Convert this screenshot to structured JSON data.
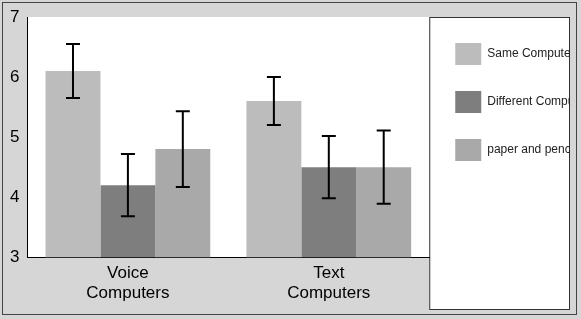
{
  "chart_data": {
    "type": "bar",
    "categories": [
      "Voice Computers",
      "Text Computers"
    ],
    "series": [
      {
        "name": "Same Computer",
        "color": "#bcbcbc",
        "values": [
          6.1,
          5.6
        ],
        "errors": [
          0.45,
          0.4
        ]
      },
      {
        "name": "Different Computer",
        "color": "#7e7e7e",
        "values": [
          4.2,
          4.5
        ],
        "errors": [
          0.52,
          0.52
        ]
      },
      {
        "name": "paper and pencil",
        "color": "#a9a9a9",
        "values": [
          4.8,
          4.5
        ],
        "errors": [
          0.63,
          0.61
        ]
      }
    ],
    "ylim": [
      3,
      7
    ],
    "yticks": [
      3,
      4,
      5,
      6,
      7
    ],
    "grid": false,
    "legend": "right"
  }
}
